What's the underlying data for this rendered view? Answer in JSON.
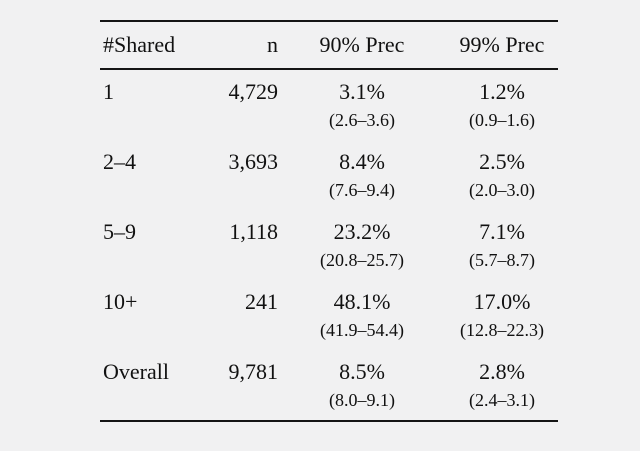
{
  "table": {
    "style": {
      "background": "#f1f1f2",
      "text_color": "#111111",
      "rule_color": "#151515"
    },
    "headers": {
      "shared": "#Shared",
      "n": "n",
      "prec90": "90% Prec",
      "prec99": "99% Prec"
    },
    "rows": [
      {
        "shared": "1",
        "n": "4,729",
        "prec90": "3.1%",
        "prec90_ci": "(2.6–3.6)",
        "prec99": "1.2%",
        "prec99_ci": "(0.9–1.6)"
      },
      {
        "shared": "2–4",
        "n": "3,693",
        "prec90": "8.4%",
        "prec90_ci": "(7.6–9.4)",
        "prec99": "2.5%",
        "prec99_ci": "(2.0–3.0)"
      },
      {
        "shared": "5–9",
        "n": "1,118",
        "prec90": "23.2%",
        "prec90_ci": "(20.8–25.7)",
        "prec99": "7.1%",
        "prec99_ci": "(5.7–8.7)"
      },
      {
        "shared": "10+",
        "n": "241",
        "prec90": "48.1%",
        "prec90_ci": "(41.9–54.4)",
        "prec99": "17.0%",
        "prec99_ci": "(12.8–22.3)"
      },
      {
        "shared": "Overall",
        "n": "9,781",
        "prec90": "8.5%",
        "prec90_ci": "(8.0–9.1)",
        "prec99": "2.8%",
        "prec99_ci": "(2.4–3.1)"
      }
    ]
  }
}
